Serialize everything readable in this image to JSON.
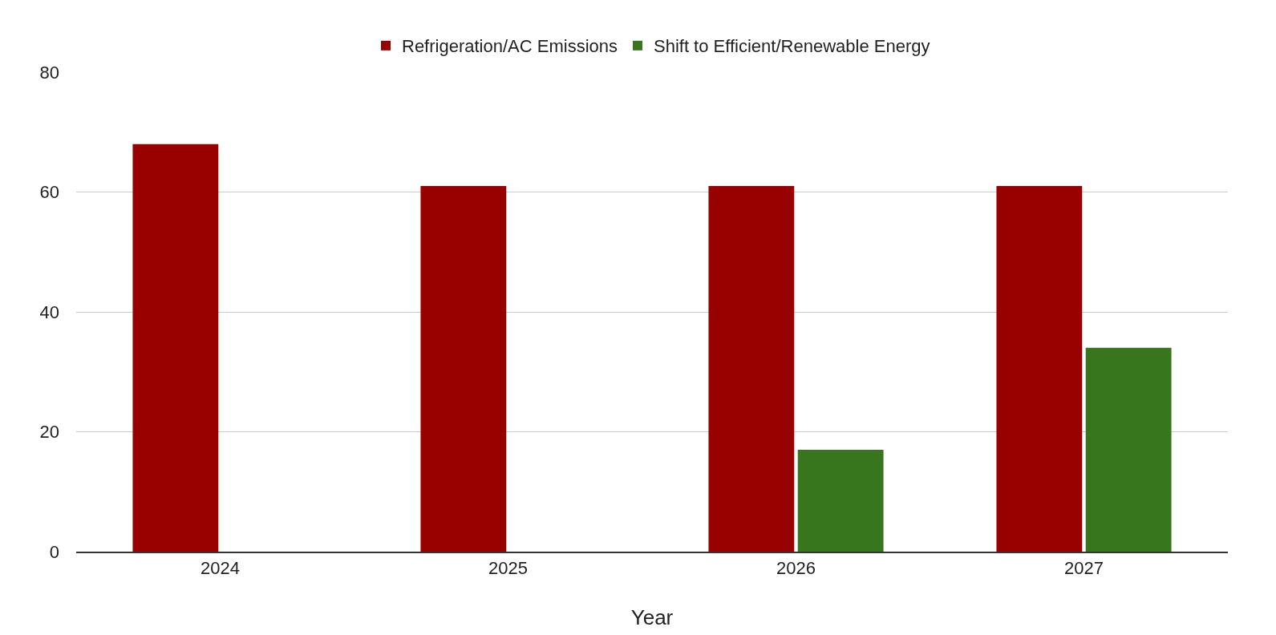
{
  "chart_data": {
    "type": "bar",
    "xlabel": "Year",
    "categories": [
      "2024",
      "2025",
      "2026",
      "2027"
    ],
    "series": [
      {
        "name": "Refrigeration/AC Emissions",
        "color": "#990000",
        "values": [
          68,
          61,
          61,
          61
        ]
      },
      {
        "name": "Shift to Efficient/Renewable Energy",
        "color": "#38761d",
        "values": [
          null,
          null,
          17,
          34
        ]
      }
    ],
    "ylim": [
      0,
      80
    ],
    "yticks": [
      0,
      20,
      40,
      60,
      80
    ],
    "grid": "y",
    "legend": "top"
  }
}
